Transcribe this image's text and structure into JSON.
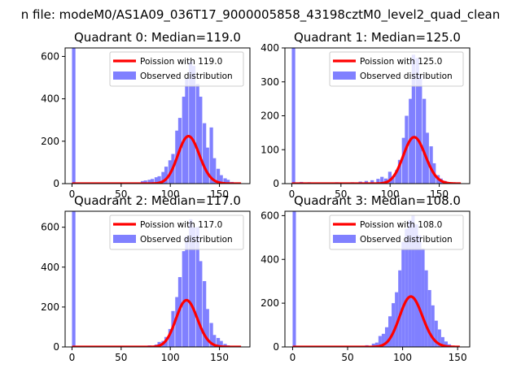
{
  "suptitle": "n file: modeM0/AS1A09_036T17_9000005858_43198cztM0_level2_quad_clean",
  "colors": {
    "observed": "#8080ff",
    "poisson": "#ff0000"
  },
  "chart_data": [
    {
      "type": "bar",
      "title": "Quadrant 0: Median=119.0",
      "median": 119,
      "xlim": [
        -7,
        181
      ],
      "ylim": [
        0,
        640
      ],
      "xticks": [
        0,
        50,
        100,
        150
      ],
      "yticks": [
        0,
        200,
        400,
        600
      ],
      "legend": {
        "location": "top-right",
        "entries": [
          "Poission with 119.0",
          "Observed distribution"
        ]
      },
      "series": [
        {
          "name": "Poission with 119.0",
          "type": "line",
          "mu": 119,
          "N": 6120,
          "x_range": [
            0,
            172
          ]
        },
        {
          "name": "Observed distribution",
          "type": "histogram",
          "bin_width": 3.5,
          "bins": [
            [
              0,
              640
            ],
            [
              66,
              5
            ],
            [
              70,
              12
            ],
            [
              73,
              15
            ],
            [
              77,
              18
            ],
            [
              80,
              22
            ],
            [
              84,
              30
            ],
            [
              87,
              35
            ],
            [
              91,
              55
            ],
            [
              94,
              80
            ],
            [
              98,
              110
            ],
            [
              101,
              140
            ],
            [
              105,
              250
            ],
            [
              108,
              310
            ],
            [
              112,
              410
            ],
            [
              115,
              495
            ],
            [
              119,
              575
            ],
            [
              122,
              555
            ],
            [
              126,
              470
            ],
            [
              129,
              410
            ],
            [
              133,
              285
            ],
            [
              136,
              170
            ],
            [
              140,
              265
            ],
            [
              143,
              120
            ],
            [
              147,
              70
            ],
            [
              150,
              40
            ],
            [
              154,
              25
            ],
            [
              157,
              18
            ],
            [
              161,
              8
            ],
            [
              164,
              5
            ]
          ]
        }
      ]
    },
    {
      "type": "bar",
      "title": "Quadrant 1: Median=125.0",
      "median": 125,
      "xlim": [
        -7,
        181
      ],
      "ylim": [
        0,
        400
      ],
      "xticks": [
        0,
        50,
        100,
        150
      ],
      "yticks": [
        0,
        100,
        200,
        300,
        400
      ],
      "legend": {
        "location": "top-right",
        "entries": [
          "Poission with 125.0",
          "Observed distribution"
        ]
      },
      "series": [
        {
          "name": "Poission with 125.0",
          "type": "line",
          "mu": 125,
          "N": 3840,
          "x_range": [
            0,
            172
          ]
        },
        {
          "name": "Observed distribution",
          "type": "histogram",
          "bin_width": 3.5,
          "bins": [
            [
              0,
              400
            ],
            [
              8,
              5
            ],
            [
              16,
              4
            ],
            [
              24,
              3
            ],
            [
              34,
              3
            ],
            [
              44,
              4
            ],
            [
              52,
              3
            ],
            [
              60,
              4
            ],
            [
              68,
              6
            ],
            [
              74,
              8
            ],
            [
              80,
              10
            ],
            [
              86,
              14
            ],
            [
              90,
              20
            ],
            [
              94,
              15
            ],
            [
              98,
              35
            ],
            [
              101,
              22
            ],
            [
              105,
              40
            ],
            [
              108,
              70
            ],
            [
              112,
              135
            ],
            [
              115,
              200
            ],
            [
              119,
              250
            ],
            [
              122,
              380
            ],
            [
              126,
              370
            ],
            [
              129,
              320
            ],
            [
              133,
              250
            ],
            [
              136,
              150
            ],
            [
              140,
              110
            ],
            [
              143,
              60
            ],
            [
              147,
              25
            ],
            [
              150,
              15
            ],
            [
              154,
              8
            ]
          ]
        }
      ]
    },
    {
      "type": "bar",
      "title": "Quadrant 2: Median=117.0",
      "median": 117,
      "xlim": [
        -7,
        181
      ],
      "ylim": [
        0,
        680
      ],
      "xticks": [
        0,
        50,
        100,
        150
      ],
      "yticks": [
        0,
        200,
        400,
        600
      ],
      "legend": {
        "location": "top-right",
        "entries": [
          "Poission with 117.0",
          "Observed distribution"
        ]
      },
      "series": [
        {
          "name": "Poission with 117.0",
          "type": "line",
          "mu": 117,
          "N": 6350,
          "x_range": [
            0,
            172
          ]
        },
        {
          "name": "Observed distribution",
          "type": "histogram",
          "bin_width": 3.5,
          "bins": [
            [
              0,
              680
            ],
            [
              70,
              5
            ],
            [
              77,
              8
            ],
            [
              84,
              12
            ],
            [
              87,
              25
            ],
            [
              91,
              30
            ],
            [
              94,
              50
            ],
            [
              98,
              90
            ],
            [
              101,
              180
            ],
            [
              105,
              250
            ],
            [
              108,
              350
            ],
            [
              112,
              480
            ],
            [
              115,
              555
            ],
            [
              119,
              640
            ],
            [
              122,
              600
            ],
            [
              126,
              600
            ],
            [
              129,
              430
            ],
            [
              133,
              330
            ],
            [
              136,
              190
            ],
            [
              140,
              120
            ],
            [
              143,
              60
            ],
            [
              147,
              45
            ],
            [
              150,
              30
            ],
            [
              154,
              15
            ],
            [
              157,
              8
            ]
          ]
        }
      ]
    },
    {
      "type": "bar",
      "title": "Quadrant 3: Median=108.0",
      "median": 108,
      "xlim": [
        -7,
        161
      ],
      "ylim": [
        0,
        620
      ],
      "xticks": [
        0,
        50,
        100,
        150
      ],
      "yticks": [
        0,
        200,
        400,
        600
      ],
      "legend": {
        "location": "top-right",
        "entries": [
          "Poission with 108.0",
          "Observed distribution"
        ]
      },
      "series": [
        {
          "name": "Poission with 108.0",
          "type": "line",
          "mu": 108,
          "N": 6000,
          "x_range": [
            0,
            152
          ]
        },
        {
          "name": "Observed distribution",
          "type": "histogram",
          "bin_width": 3,
          "bins": [
            [
              0,
              620
            ],
            [
              60,
              5
            ],
            [
              66,
              8
            ],
            [
              72,
              15
            ],
            [
              75,
              20
            ],
            [
              78,
              50
            ],
            [
              81,
              60
            ],
            [
              84,
              90
            ],
            [
              87,
              140
            ],
            [
              90,
              200
            ],
            [
              93,
              250
            ],
            [
              96,
              350
            ],
            [
              99,
              480
            ],
            [
              102,
              540
            ],
            [
              105,
              580
            ],
            [
              108,
              600
            ],
            [
              111,
              560
            ],
            [
              114,
              510
            ],
            [
              117,
              450
            ],
            [
              120,
              350
            ],
            [
              123,
              260
            ],
            [
              126,
              190
            ],
            [
              129,
              120
            ],
            [
              132,
              80
            ],
            [
              135,
              45
            ],
            [
              138,
              25
            ],
            [
              141,
              12
            ],
            [
              144,
              6
            ]
          ]
        }
      ]
    }
  ]
}
